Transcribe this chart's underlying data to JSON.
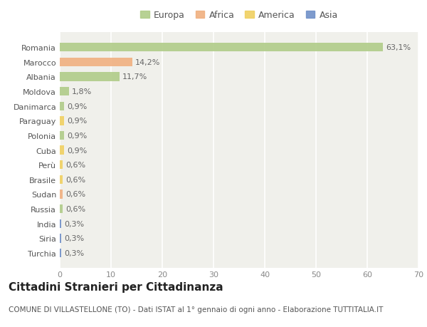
{
  "countries": [
    "Romania",
    "Marocco",
    "Albania",
    "Moldova",
    "Danimarca",
    "Paraguay",
    "Polonia",
    "Cuba",
    "Perù",
    "Brasile",
    "Sudan",
    "Russia",
    "India",
    "Siria",
    "Turchia"
  ],
  "values": [
    63.1,
    14.2,
    11.7,
    1.8,
    0.9,
    0.9,
    0.9,
    0.9,
    0.6,
    0.6,
    0.6,
    0.6,
    0.3,
    0.3,
    0.3
  ],
  "labels": [
    "63,1%",
    "14,2%",
    "11,7%",
    "1,8%",
    "0,9%",
    "0,9%",
    "0,9%",
    "0,9%",
    "0,6%",
    "0,6%",
    "0,6%",
    "0,6%",
    "0,3%",
    "0,3%",
    "0,3%"
  ],
  "continents": [
    "Europa",
    "Africa",
    "Europa",
    "Europa",
    "Europa",
    "America",
    "Europa",
    "America",
    "America",
    "America",
    "Africa",
    "Europa",
    "Asia",
    "Asia",
    "Asia"
  ],
  "colors": {
    "Europa": "#b0cc88",
    "Africa": "#f0b080",
    "America": "#f0d060",
    "Asia": "#7090c8"
  },
  "xlim": [
    0,
    70
  ],
  "xticks": [
    0,
    10,
    20,
    30,
    40,
    50,
    60,
    70
  ],
  "bg_color": "#f0f0eb",
  "plot_bg": "#f0f0eb",
  "fig_bg": "#ffffff",
  "title": "Cittadini Stranieri per Cittadinanza",
  "subtitle": "COMUNE DI VILLASTELLONE (TO) - Dati ISTAT al 1° gennaio di ogni anno - Elaborazione TUTTITALIA.IT",
  "bar_height": 0.6,
  "title_fontsize": 11,
  "subtitle_fontsize": 7.5,
  "label_fontsize": 8,
  "tick_fontsize": 8,
  "legend_fontsize": 9
}
